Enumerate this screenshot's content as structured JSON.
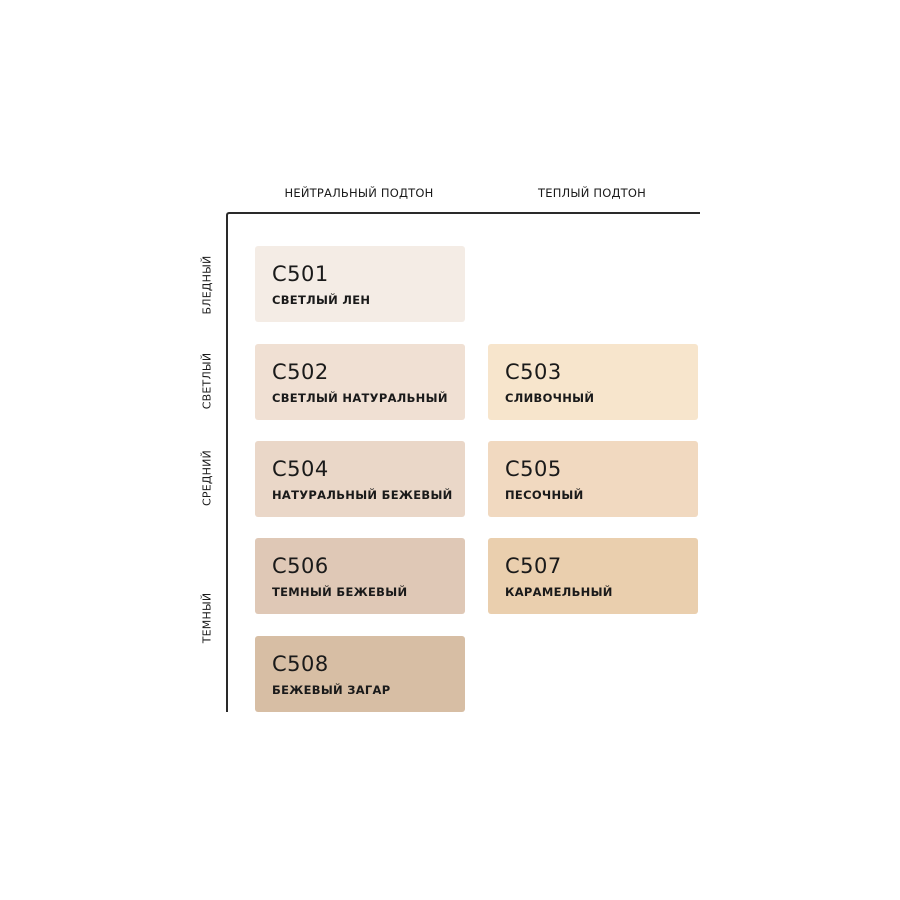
{
  "columns": [
    "НЕЙТРАЛЬНЫЙ ПОДТОН",
    "ТЕПЛЫЙ ПОДТОН"
  ],
  "rows": [
    "БЛЕДНЫЙ",
    "СВЕТЛЫЙ",
    "СРЕДНИЙ",
    "ТЕМНЫЙ"
  ],
  "shades": [
    {
      "code": "C501",
      "name": "СВЕТЛЫЙ ЛЕН",
      "color": "#f4ece5",
      "undertone": "НЕЙТРАЛЬНЫЙ ПОДТОН"
    },
    {
      "code": "C502",
      "name": "СВЕТЛЫЙ НАТУРАЛЬНЫЙ",
      "color": "#f0e0d3",
      "undertone": "НЕЙТРАЛЬНЫЙ ПОДТОН"
    },
    {
      "code": "C503",
      "name": "СЛИВОЧНЫЙ",
      "color": "#f7e5cc",
      "undertone": "ТЕПЛЫЙ ПОДТОН"
    },
    {
      "code": "C504",
      "name": "НАТУРАЛЬНЫЙ БЕЖЕВЫЙ",
      "color": "#ead7c8",
      "undertone": "НЕЙТРАЛЬНЫЙ ПОДТОН"
    },
    {
      "code": "C505",
      "name": "ПЕСОЧНЫЙ",
      "color": "#f1d9c0",
      "undertone": "ТЕПЛЫЙ ПОДТОН"
    },
    {
      "code": "C506",
      "name": "ТЕМНЫЙ БЕЖЕВЫЙ",
      "color": "#dfc8b6",
      "undertone": "НЕЙТРАЛЬНЫЙ ПОДТОН"
    },
    {
      "code": "C507",
      "name": "КАРАМЕЛЬНЫЙ",
      "color": "#eacfae",
      "undertone": "ТЕПЛЫЙ ПОДТОН"
    },
    {
      "code": "C508",
      "name": "БЕЖЕВЫЙ ЗАГАР",
      "color": "#d7bea4",
      "undertone": "НЕЙТРАЛЬНЫЙ ПОДТОН"
    }
  ]
}
